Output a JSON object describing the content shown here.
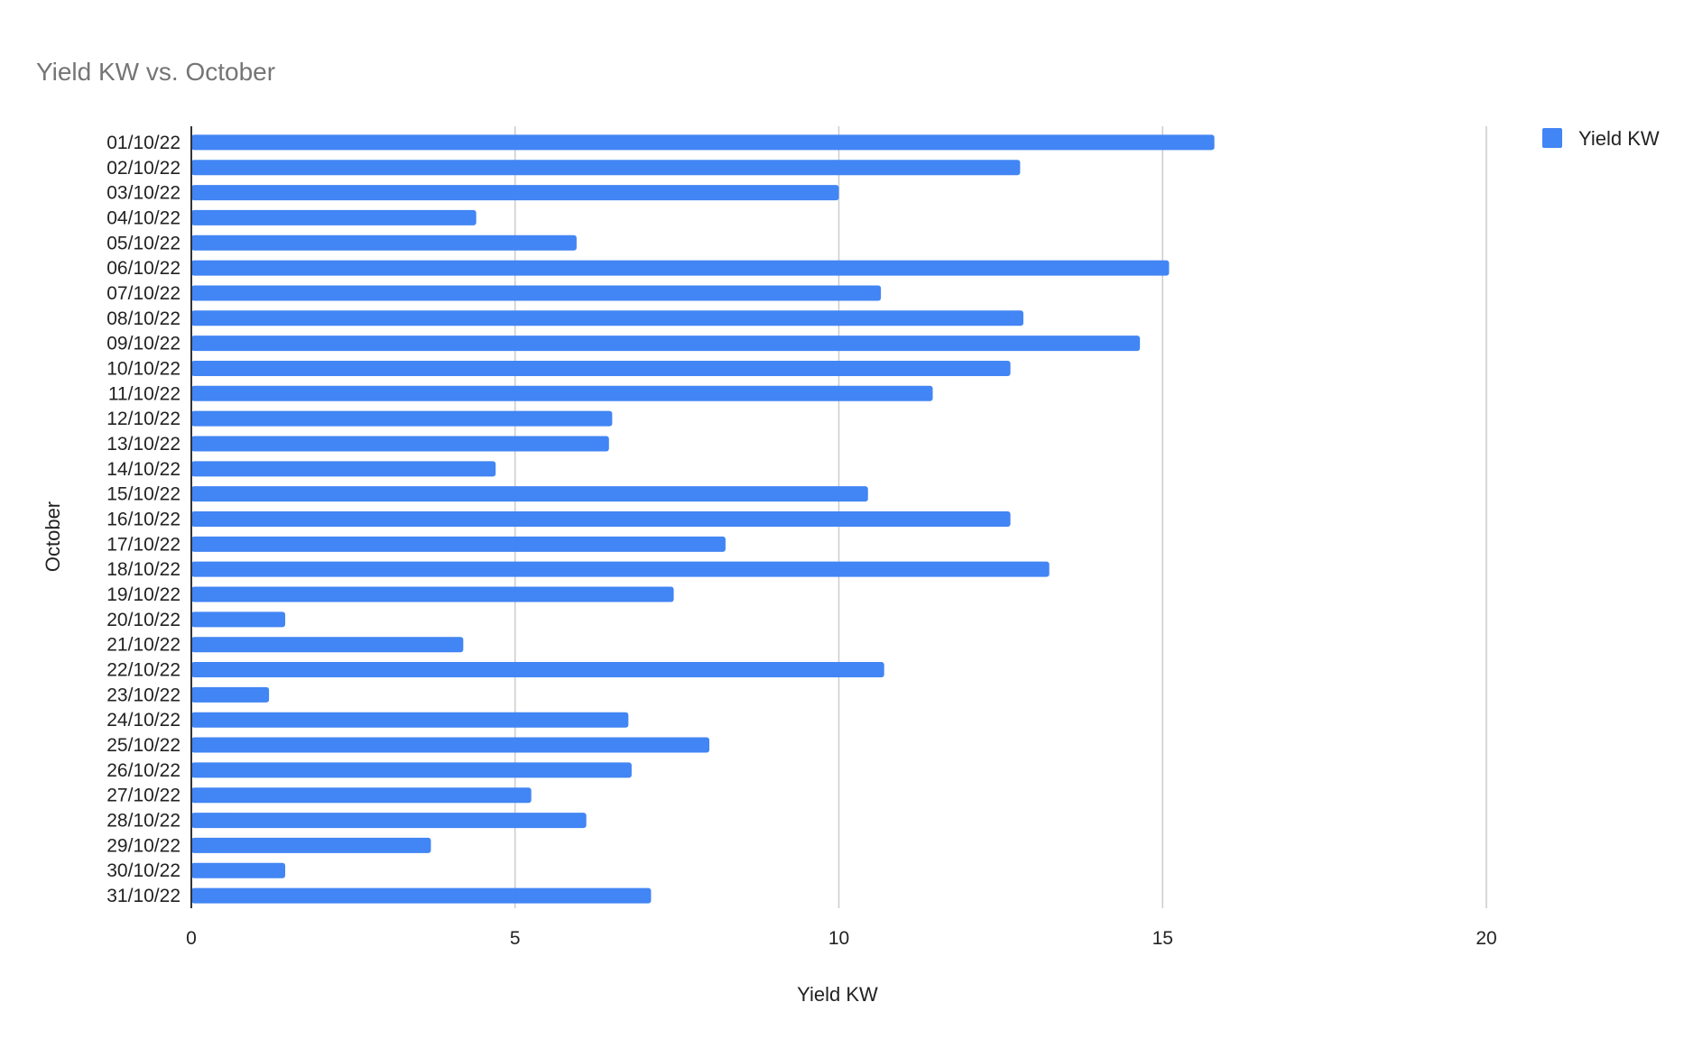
{
  "chart_data": {
    "type": "bar",
    "orientation": "horizontal",
    "title": "Yield KW vs. October",
    "xlabel": "Yield KW",
    "ylabel": "October",
    "xlim": [
      0,
      20
    ],
    "xticks": [
      0,
      5,
      10,
      15,
      20
    ],
    "grid": true,
    "legend_position": "top-right",
    "colors": {
      "bar": "#4285f4",
      "grid": "#cccccc",
      "axis": "#333333"
    },
    "categories": [
      "01/10/22",
      "02/10/22",
      "03/10/22",
      "04/10/22",
      "05/10/22",
      "06/10/22",
      "07/10/22",
      "08/10/22",
      "09/10/22",
      "10/10/22",
      "11/10/22",
      "12/10/22",
      "13/10/22",
      "14/10/22",
      "15/10/22",
      "16/10/22",
      "17/10/22",
      "18/10/22",
      "19/10/22",
      "20/10/22",
      "21/10/22",
      "22/10/22",
      "23/10/22",
      "24/10/22",
      "25/10/22",
      "26/10/22",
      "27/10/22",
      "28/10/22",
      "29/10/22",
      "30/10/22",
      "31/10/22"
    ],
    "series": [
      {
        "name": "Yield KW",
        "values": [
          15.8,
          12.8,
          10.0,
          4.4,
          5.95,
          15.1,
          10.65,
          12.85,
          14.65,
          12.65,
          11.45,
          6.5,
          6.45,
          4.7,
          10.45,
          12.65,
          8.25,
          13.25,
          7.45,
          1.45,
          4.2,
          10.7,
          1.2,
          6.75,
          8.0,
          6.8,
          5.25,
          6.1,
          3.7,
          1.45,
          7.1
        ]
      }
    ]
  }
}
